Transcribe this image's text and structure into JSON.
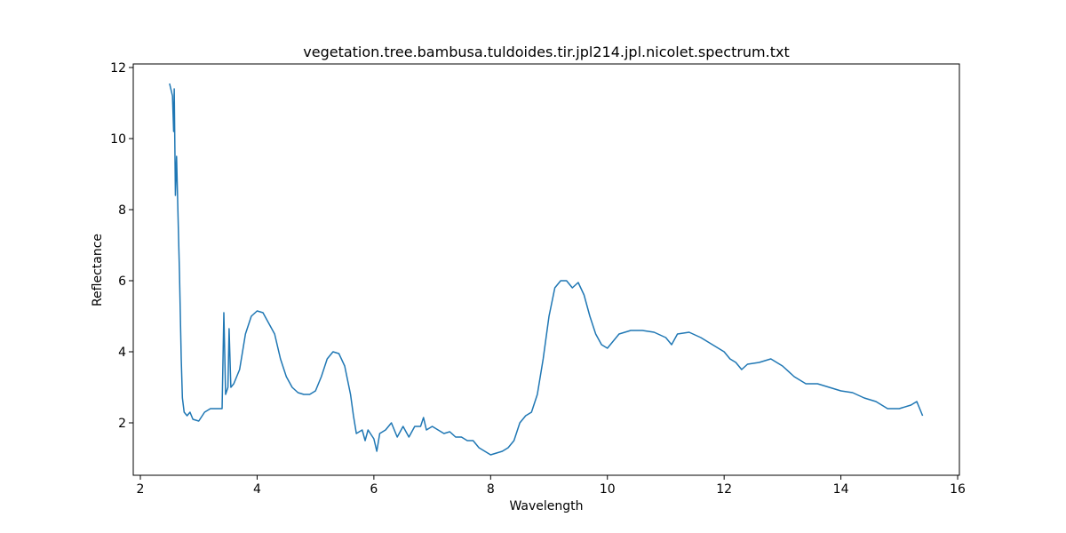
{
  "chart_data": {
    "type": "line",
    "title": "vegetation.tree.bambusa.tuldoides.tir.jpl214.jpl.nicolet.spectrum.txt",
    "x_label": "Wavelength",
    "y_label": "Reflectance",
    "xlim": [
      1.878,
      16.03
    ],
    "ylim": [
      0.525,
      12.1
    ],
    "xticks": [
      2,
      4,
      6,
      8,
      10,
      12,
      14,
      16
    ],
    "yticks": [
      2,
      4,
      6,
      8,
      10,
      12
    ],
    "series": [
      {
        "color": "#1f77b4",
        "x": [
          2.5,
          2.55,
          2.57,
          2.58,
          2.6,
          2.62,
          2.65,
          2.67,
          2.7,
          2.72,
          2.75,
          2.8,
          2.85,
          2.9,
          3.0,
          3.1,
          3.2,
          3.3,
          3.4,
          3.43,
          3.46,
          3.5,
          3.52,
          3.55,
          3.6,
          3.7,
          3.8,
          3.9,
          4.0,
          4.1,
          4.2,
          4.3,
          4.4,
          4.5,
          4.6,
          4.7,
          4.8,
          4.9,
          5.0,
          5.1,
          5.2,
          5.3,
          5.4,
          5.5,
          5.6,
          5.65,
          5.7,
          5.8,
          5.85,
          5.9,
          6.0,
          6.05,
          6.1,
          6.2,
          6.3,
          6.4,
          6.5,
          6.6,
          6.7,
          6.8,
          6.85,
          6.9,
          7.0,
          7.1,
          7.2,
          7.3,
          7.4,
          7.5,
          7.6,
          7.7,
          7.8,
          7.9,
          8.0,
          8.1,
          8.2,
          8.3,
          8.4,
          8.5,
          8.6,
          8.7,
          8.8,
          8.9,
          9.0,
          9.1,
          9.2,
          9.3,
          9.4,
          9.5,
          9.6,
          9.7,
          9.8,
          9.9,
          10.0,
          10.1,
          10.2,
          10.4,
          10.6,
          10.8,
          11.0,
          11.1,
          11.2,
          11.4,
          11.6,
          11.8,
          12.0,
          12.1,
          12.2,
          12.3,
          12.4,
          12.6,
          12.8,
          13.0,
          13.2,
          13.4,
          13.6,
          13.8,
          14.0,
          14.2,
          14.4,
          14.6,
          14.8,
          15.0,
          15.2,
          15.3,
          15.4
        ],
        "values": [
          11.55,
          11.2,
          10.2,
          11.4,
          8.4,
          9.5,
          7.5,
          6.2,
          3.8,
          2.7,
          2.3,
          2.2,
          2.3,
          2.1,
          2.05,
          2.3,
          2.4,
          2.4,
          2.4,
          5.1,
          2.8,
          3.0,
          4.65,
          3.0,
          3.1,
          3.5,
          4.5,
          5.0,
          5.15,
          5.1,
          4.8,
          4.5,
          3.8,
          3.3,
          3.0,
          2.85,
          2.8,
          2.8,
          2.9,
          3.3,
          3.8,
          4.0,
          3.95,
          3.6,
          2.8,
          2.2,
          1.7,
          1.8,
          1.5,
          1.8,
          1.55,
          1.2,
          1.7,
          1.8,
          2.0,
          1.6,
          1.9,
          1.6,
          1.9,
          1.9,
          2.15,
          1.8,
          1.9,
          1.8,
          1.7,
          1.75,
          1.6,
          1.6,
          1.5,
          1.5,
          1.3,
          1.2,
          1.1,
          1.15,
          1.2,
          1.3,
          1.5,
          2.0,
          2.2,
          2.3,
          2.8,
          3.8,
          5.0,
          5.8,
          6.0,
          6.0,
          5.8,
          5.95,
          5.6,
          5.0,
          4.5,
          4.2,
          4.1,
          4.3,
          4.5,
          4.6,
          4.6,
          4.55,
          4.4,
          4.2,
          4.5,
          4.55,
          4.4,
          4.2,
          4.0,
          3.8,
          3.7,
          3.5,
          3.65,
          3.7,
          3.8,
          3.6,
          3.3,
          3.1,
          3.1,
          3.0,
          2.9,
          2.85,
          2.7,
          2.6,
          2.4,
          2.4,
          2.5,
          2.6,
          2.2
        ]
      }
    ]
  }
}
